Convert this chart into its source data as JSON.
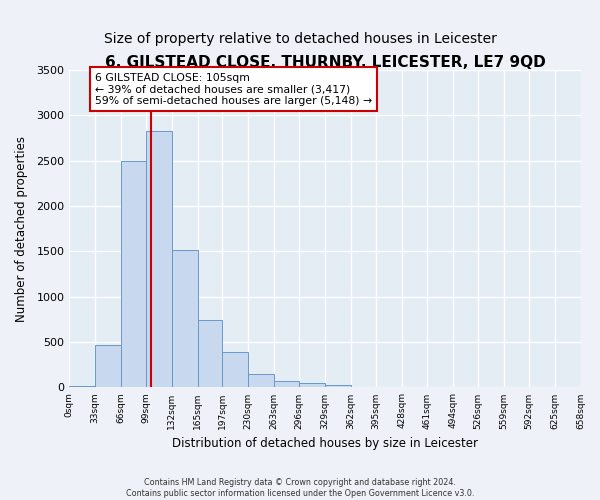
{
  "title": "6, GILSTEAD CLOSE, THURNBY, LEICESTER, LE7 9QD",
  "subtitle": "Size of property relative to detached houses in Leicester",
  "xlabel": "Distribution of detached houses by size in Leicester",
  "ylabel": "Number of detached properties",
  "bin_edges": [
    0,
    33,
    66,
    99,
    132,
    165,
    197,
    230,
    263,
    296,
    329,
    362,
    395,
    428,
    461,
    494,
    526,
    559,
    592,
    625,
    658
  ],
  "bin_labels": [
    "0sqm",
    "33sqm",
    "66sqm",
    "99sqm",
    "132sqm",
    "165sqm",
    "197sqm",
    "230sqm",
    "263sqm",
    "296sqm",
    "329sqm",
    "362sqm",
    "395sqm",
    "428sqm",
    "461sqm",
    "494sqm",
    "526sqm",
    "559sqm",
    "592sqm",
    "625sqm",
    "658sqm"
  ],
  "bar_heights": [
    20,
    470,
    2500,
    2830,
    1520,
    740,
    390,
    150,
    75,
    50,
    30,
    10,
    5,
    0,
    0,
    0,
    0,
    0,
    0,
    0
  ],
  "bar_color": "#c8d8ee",
  "bar_edge_color": "#6699cc",
  "ylim": [
    0,
    3500
  ],
  "yticks": [
    0,
    500,
    1000,
    1500,
    2000,
    2500,
    3000,
    3500
  ],
  "property_size": 105,
  "vline_color": "#cc0000",
  "annotation_title": "6 GILSTEAD CLOSE: 105sqm",
  "annotation_line1": "← 39% of detached houses are smaller (3,417)",
  "annotation_line2": "59% of semi-detached houses are larger (5,148) →",
  "annotation_box_facecolor": "#ffffff",
  "annotation_box_edgecolor": "#cc0000",
  "footer1": "Contains HM Land Registry data © Crown copyright and database right 2024.",
  "footer2": "Contains public sector information licensed under the Open Government Licence v3.0.",
  "fig_background_color": "#eef2f8",
  "plot_background_color": "#e4ecf4",
  "grid_color": "#ffffff",
  "title_fontsize": 11,
  "subtitle_fontsize": 10
}
